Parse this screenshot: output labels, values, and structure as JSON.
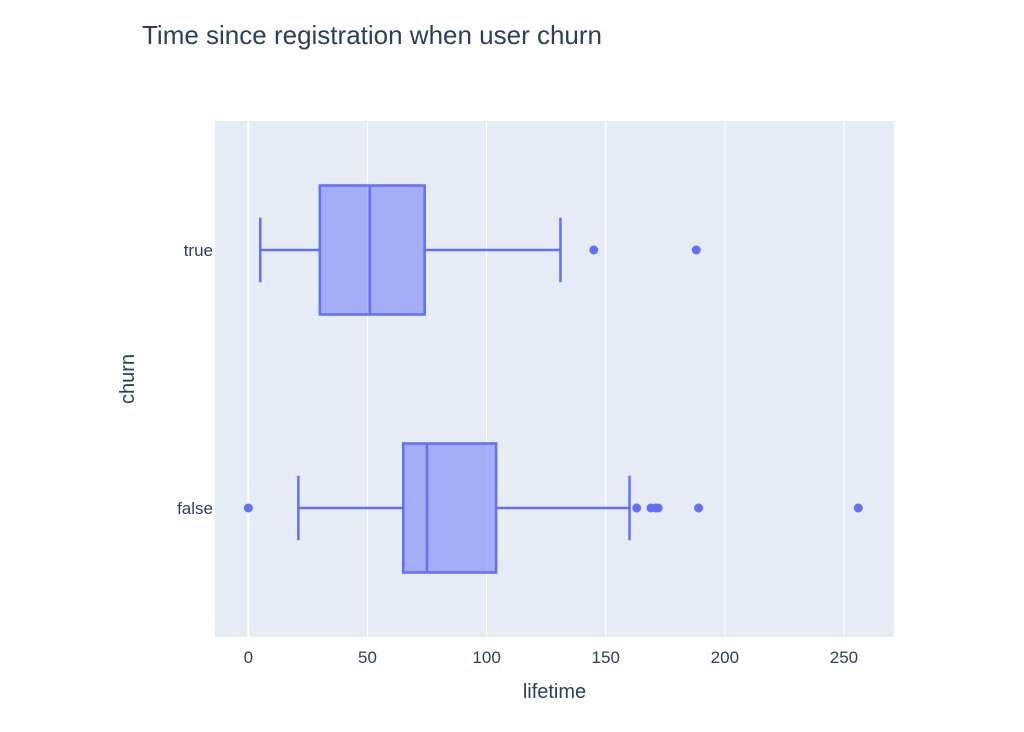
{
  "chart_data": {
    "type": "box",
    "title": "Time since registration when user churn",
    "xlabel": "lifetime",
    "ylabel": "churn",
    "orientation": "horizontal",
    "xlim": [
      -14,
      271
    ],
    "xticks": [
      0,
      50,
      100,
      150,
      200,
      250
    ],
    "grid": true,
    "colors": {
      "box": "#636efa",
      "plot_bg": "#e5ecf6",
      "grid": "#ffffff",
      "text": "#2a3f5f"
    },
    "categories": [
      "true",
      "false"
    ],
    "boxes": [
      {
        "category": "true",
        "lower_whisker": 5,
        "q1": 30,
        "median": 51,
        "q3": 74,
        "upper_whisker": 131,
        "outliers": [
          145,
          188
        ]
      },
      {
        "category": "false",
        "lower_whisker": 21,
        "q1": 65,
        "median": 75,
        "q3": 104,
        "upper_whisker": 160,
        "outliers": [
          0,
          163,
          169,
          171,
          172,
          189,
          256
        ]
      }
    ]
  }
}
